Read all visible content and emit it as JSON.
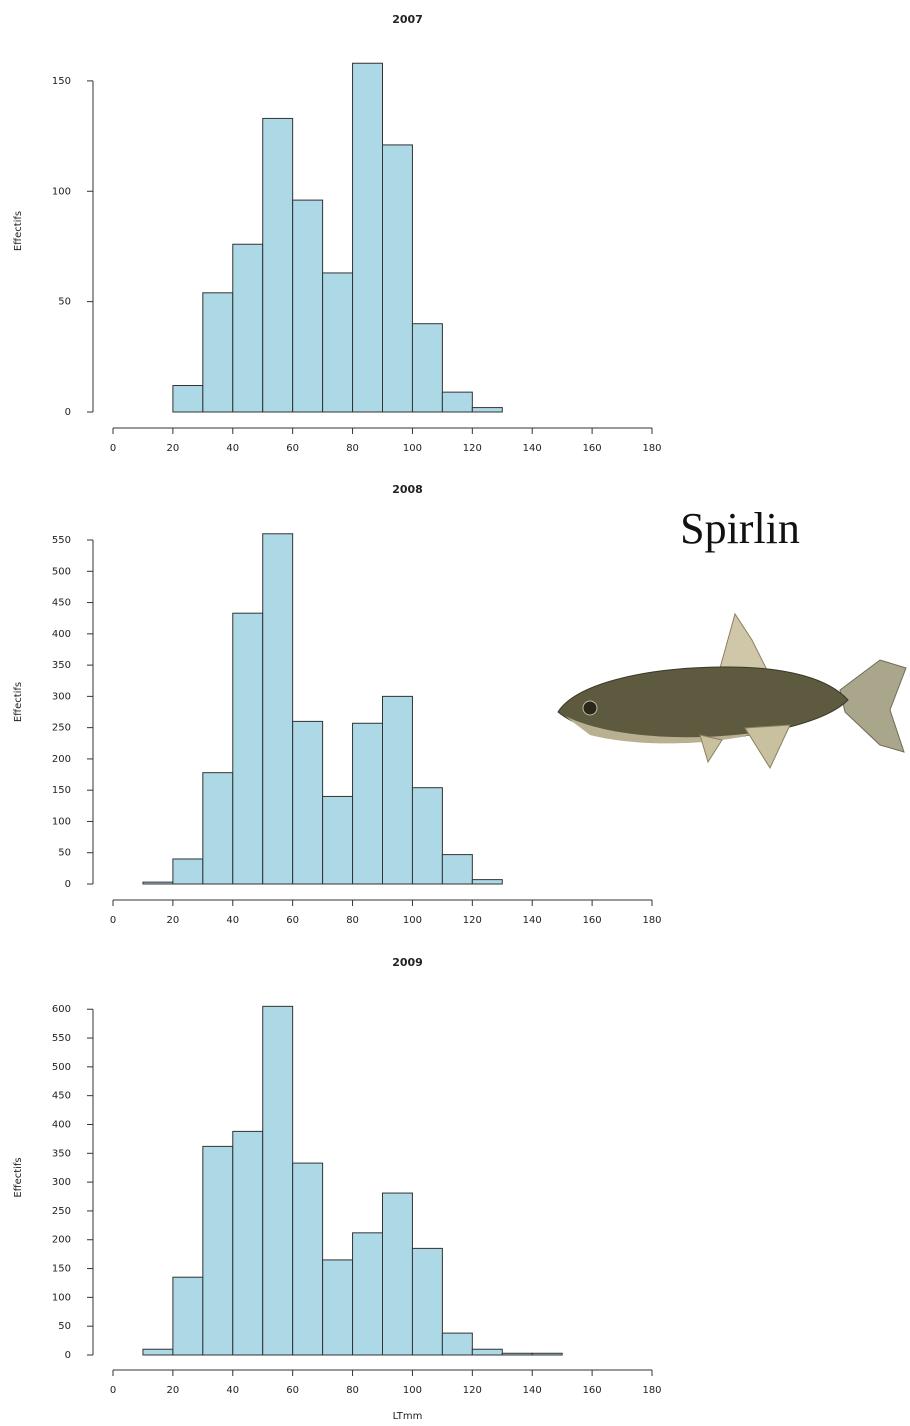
{
  "chart_data": [
    {
      "type": "histogram",
      "title": "2007",
      "ylabel": "Effectifs",
      "bins": [
        0,
        10,
        20,
        30,
        40,
        50,
        60,
        70,
        80,
        90,
        100,
        110,
        120,
        130,
        140,
        150,
        160,
        170,
        180
      ],
      "values": [
        0,
        0,
        12,
        54,
        76,
        133,
        96,
        63,
        158,
        121,
        40,
        9,
        2,
        0,
        0,
        0,
        0,
        0
      ],
      "color": "#add8e6",
      "edgecolor": "#333333",
      "xlim": [
        0,
        180
      ],
      "xticks": [
        0,
        20,
        40,
        60,
        80,
        100,
        120,
        140,
        160,
        180
      ],
      "ylim": [
        0,
        164
      ],
      "yticks": [
        0,
        50,
        100,
        150
      ]
    },
    {
      "type": "histogram",
      "title": "2008",
      "ylabel": "Effectifs",
      "bins": [
        0,
        10,
        20,
        30,
        40,
        50,
        60,
        70,
        80,
        90,
        100,
        110,
        120,
        130,
        140,
        150,
        160,
        170,
        180
      ],
      "values": [
        0,
        3,
        40,
        178,
        433,
        560,
        260,
        140,
        257,
        300,
        154,
        47,
        7,
        0,
        0,
        0,
        0,
        0
      ],
      "color": "#add8e6",
      "edgecolor": "#333333",
      "xlim": [
        0,
        180
      ],
      "xticks": [
        0,
        20,
        40,
        60,
        80,
        100,
        120,
        140,
        160,
        180
      ],
      "ylim": [
        0,
        582
      ],
      "yticks": [
        0,
        50,
        100,
        150,
        200,
        250,
        300,
        350,
        400,
        450,
        500,
        550
      ]
    },
    {
      "type": "histogram",
      "title": "2009",
      "ylabel": "Effectifs",
      "xlabel": "LTmm",
      "bins": [
        0,
        10,
        20,
        30,
        40,
        50,
        60,
        70,
        80,
        90,
        100,
        110,
        120,
        130,
        140,
        150,
        160,
        170,
        180
      ],
      "values": [
        0,
        10,
        135,
        362,
        388,
        605,
        333,
        165,
        212,
        281,
        185,
        38,
        10,
        3,
        3,
        0,
        0,
        0
      ],
      "color": "#add8e6",
      "edgecolor": "#333333",
      "xlim": [
        0,
        180
      ],
      "xticks": [
        0,
        20,
        40,
        60,
        80,
        100,
        120,
        140,
        160,
        180
      ],
      "ylim": [
        0,
        616
      ],
      "yticks": [
        0,
        50,
        100,
        150,
        200,
        250,
        300,
        350,
        400,
        450,
        500,
        550,
        600
      ]
    }
  ],
  "image_caption": "Spirlin"
}
